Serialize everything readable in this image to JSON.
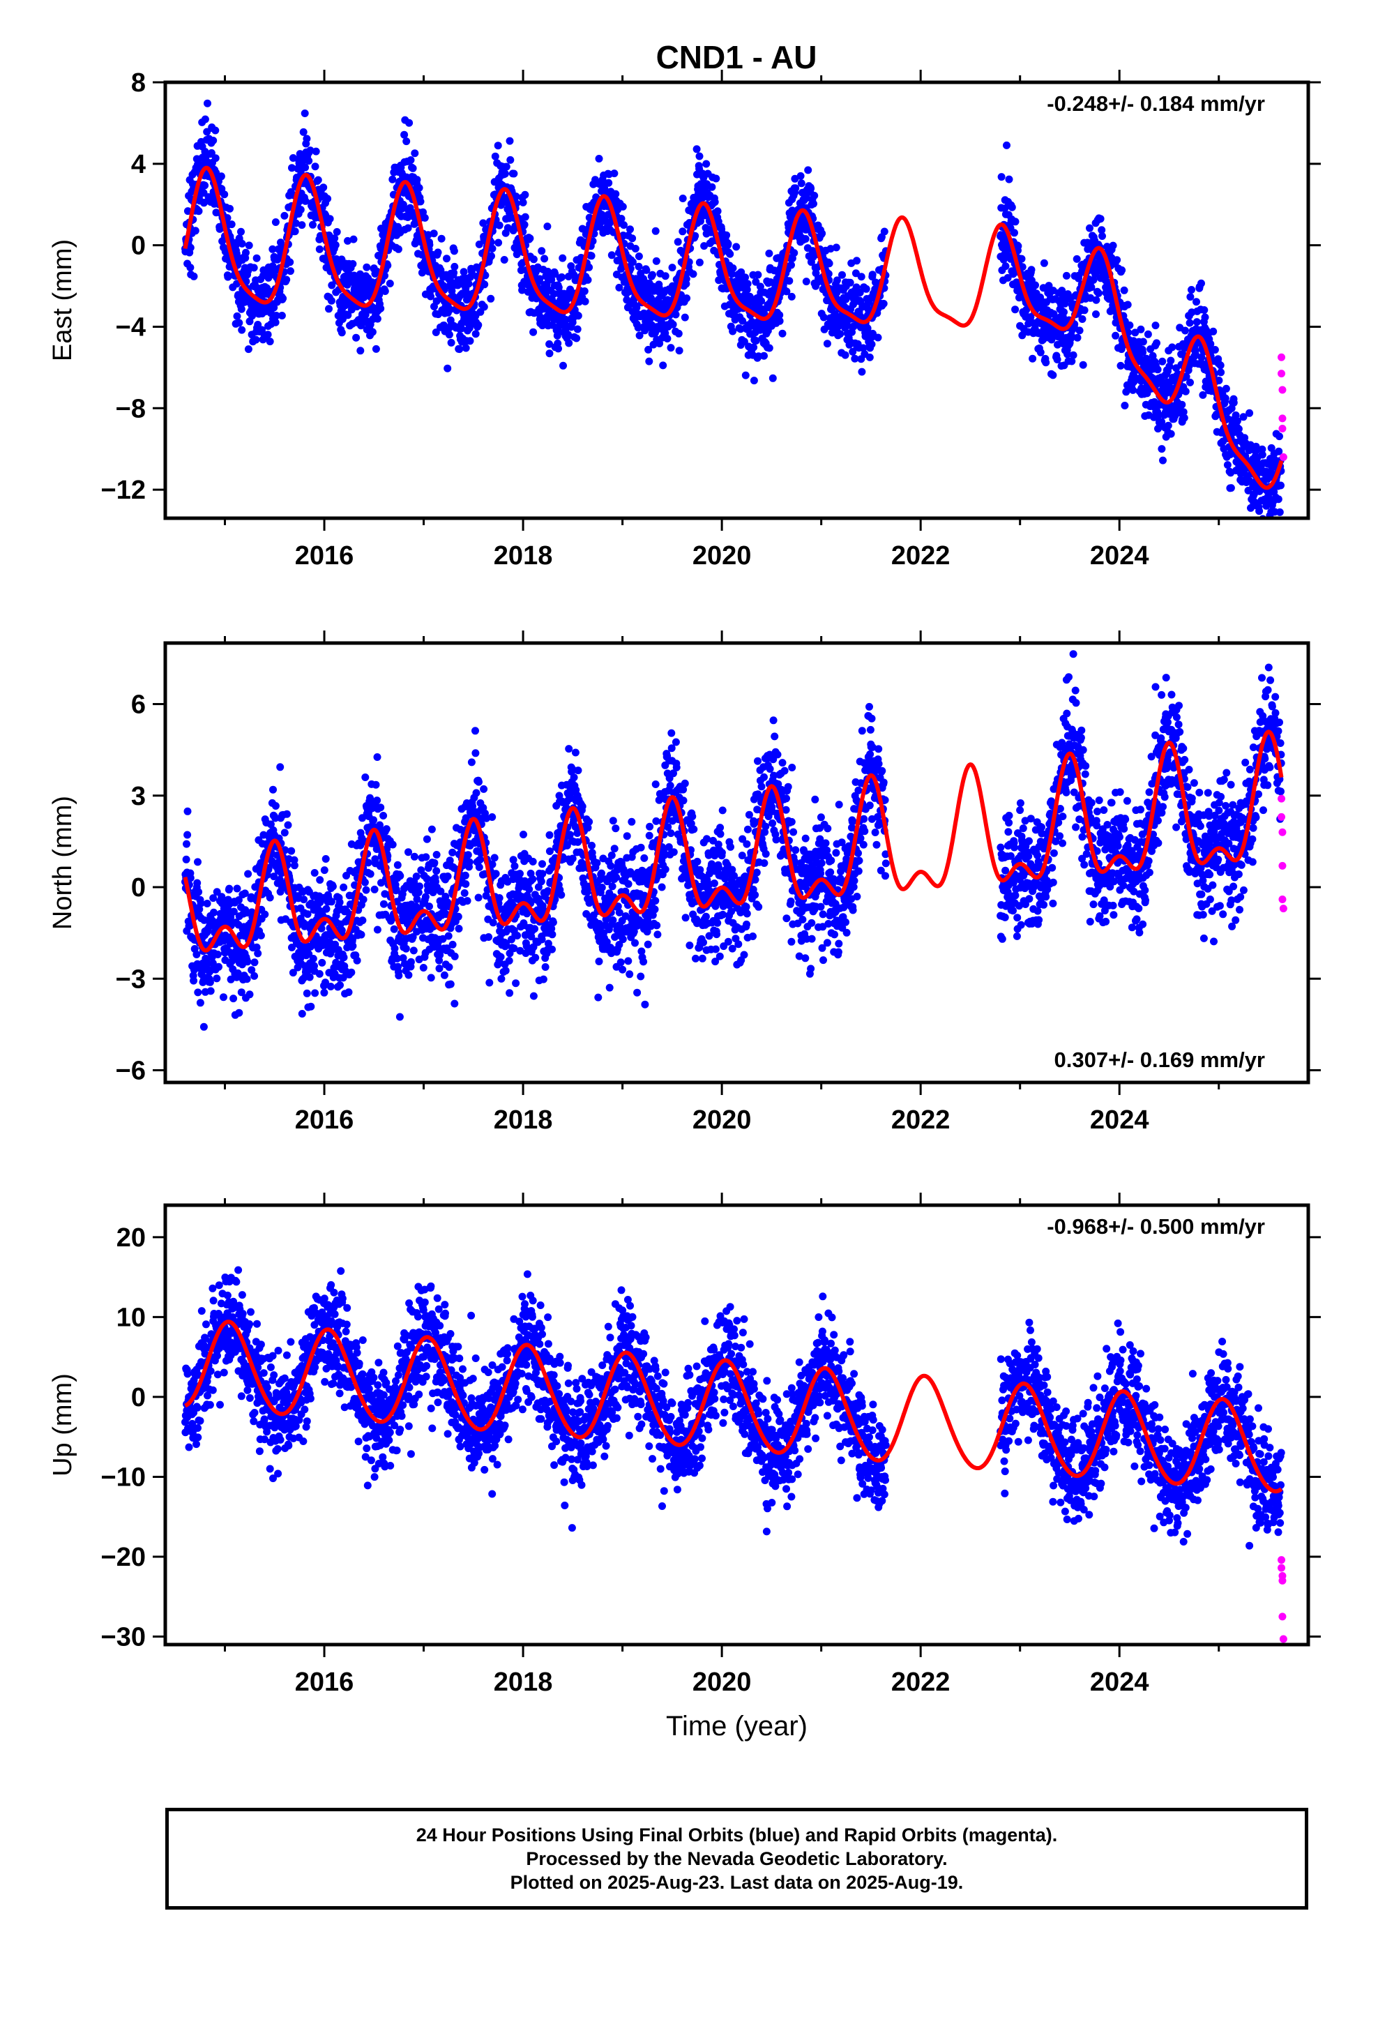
{
  "title": "CND1 - AU",
  "colors": {
    "final": "#0000ff",
    "rapid": "#ff00ff",
    "model": "#ff0000"
  },
  "caption": {
    "line1": "24 Hour Positions Using Final Orbits (blue) and Rapid Orbits (magenta).",
    "line2": "Processed by the Nevada Geodetic Laboratory.",
    "line3": "Plotted on 2025-Aug-23. Last data on 2025-Aug-19."
  },
  "chart_data": [
    {
      "type": "scatter",
      "component": "east",
      "ylabel": "East (mm)",
      "xlabel": "",
      "xlim": [
        2014.4,
        2025.9
      ],
      "ylim": [
        -13.4,
        8
      ],
      "x_ticks": [
        2016,
        2018,
        2020,
        2022,
        2024
      ],
      "y_ticks": [
        8,
        4,
        0,
        -4,
        -8,
        -12
      ],
      "rate_label": "-0.248+/- 0.184 mm/yr",
      "rate_label_position": "top-right",
      "rate": -0.248,
      "data_start": 2014.6,
      "data_end": 2025.63,
      "gaps": [
        [
          2021.65,
          2022.8
        ]
      ],
      "model": {
        "t0": 2014.6,
        "offset": 0.0,
        "annual_amp": 3.2,
        "annual_phase_year": 2014.83,
        "semiannual_amp": 0.7,
        "semiannual_phase_year": 2014.8,
        "amp_drift": -0.1,
        "extra_trend_after": 2023.6,
        "extra_trend": -4.0
      },
      "scatter_noise": 1.1,
      "rapid_points": [
        [
          2025.63,
          -5.5
        ],
        [
          2025.63,
          -6.3
        ],
        [
          2025.64,
          -7.1
        ],
        [
          2025.64,
          -8.5
        ],
        [
          2025.64,
          -9.0
        ],
        [
          2025.65,
          -10.4
        ]
      ]
    },
    {
      "type": "scatter",
      "component": "north",
      "ylabel": "North (mm)",
      "xlabel": "",
      "xlim": [
        2014.4,
        2025.9
      ],
      "ylim": [
        -6.4,
        8.0
      ],
      "x_ticks": [
        2016,
        2018,
        2020,
        2022,
        2024
      ],
      "y_ticks": [
        6,
        3,
        0,
        -3,
        -6
      ],
      "rate_label": "0.307+/- 0.169 mm/yr",
      "rate_label_position": "bottom-right",
      "rate": 0.307,
      "data_start": 2014.6,
      "data_end": 2025.63,
      "gaps": [
        [
          2021.65,
          2022.8
        ]
      ],
      "model": {
        "t0": 2014.6,
        "offset": -1.0,
        "annual_amp": 1.3,
        "annual_phase_year": 2014.5,
        "semiannual_amp": 0.9,
        "semiannual_phase_year": 2014.5,
        "amp_drift": 0.05,
        "extra_trend_after": 2030,
        "extra_trend": 0.0
      },
      "scatter_noise": 1.0,
      "rapid_points": [
        [
          2025.63,
          2.9
        ],
        [
          2025.63,
          2.3
        ],
        [
          2025.64,
          1.8
        ],
        [
          2025.64,
          0.7
        ],
        [
          2025.64,
          -0.4
        ],
        [
          2025.65,
          -0.7
        ]
      ]
    },
    {
      "type": "scatter",
      "component": "up",
      "ylabel": "Up (mm)",
      "xlabel": "Time (year)",
      "xlim": [
        2014.4,
        2025.9
      ],
      "ylim": [
        -31,
        24
      ],
      "x_ticks": [
        2016,
        2018,
        2020,
        2022,
        2024
      ],
      "y_ticks": [
        20,
        10,
        0,
        -10,
        -20,
        -30
      ],
      "rate_label": "-0.968+/- 0.500 mm/yr",
      "rate_label_position": "top-right",
      "rate": -0.968,
      "data_start": 2014.6,
      "data_end": 2025.63,
      "gaps": [
        [
          2021.65,
          2022.8
        ]
      ],
      "model": {
        "t0": 2014.6,
        "offset": 4.0,
        "annual_amp": 5.5,
        "annual_phase_year": 2015.05,
        "semiannual_amp": 0.4,
        "semiannual_phase_year": 2015.0,
        "amp_drift": 0.0,
        "extra_trend_after": 2030,
        "extra_trend": 0.0
      },
      "scatter_noise": 3.3,
      "rapid_points": [
        [
          2025.63,
          -20.4
        ],
        [
          2025.63,
          -21.4
        ],
        [
          2025.64,
          -22.4
        ],
        [
          2025.64,
          -23.0
        ],
        [
          2025.64,
          -27.5
        ],
        [
          2025.65,
          -30.3
        ]
      ]
    }
  ]
}
